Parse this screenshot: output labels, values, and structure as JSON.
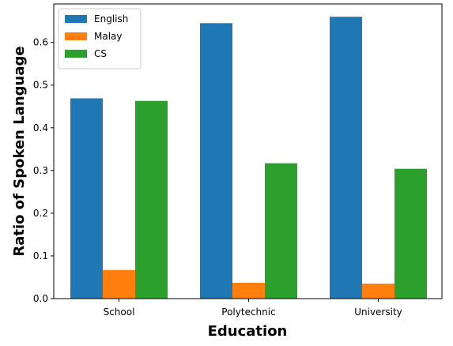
{
  "chart_data": {
    "type": "bar",
    "xlabel": "Education",
    "ylabel": "Ratio of Spoken Language",
    "categories": [
      "School",
      "Polytechnic",
      "University"
    ],
    "series": [
      {
        "name": "English",
        "color": "#1f77b4",
        "values": [
          0.469,
          0.645,
          0.66
        ]
      },
      {
        "name": "Malay",
        "color": "#ff7f0e",
        "values": [
          0.067,
          0.037,
          0.035
        ]
      },
      {
        "name": "CS",
        "color": "#2ca02c",
        "values": [
          0.463,
          0.317,
          0.304
        ]
      }
    ],
    "ylim": [
      0,
      0.69
    ],
    "yticks": [
      0.0,
      0.1,
      0.2,
      0.3,
      0.4,
      0.5,
      0.6
    ],
    "ytick_labels": [
      "0.0",
      "0.1",
      "0.2",
      "0.3",
      "0.4",
      "0.5",
      "0.6"
    ],
    "legend": {
      "placement": "upper-left"
    },
    "grid": false
  }
}
